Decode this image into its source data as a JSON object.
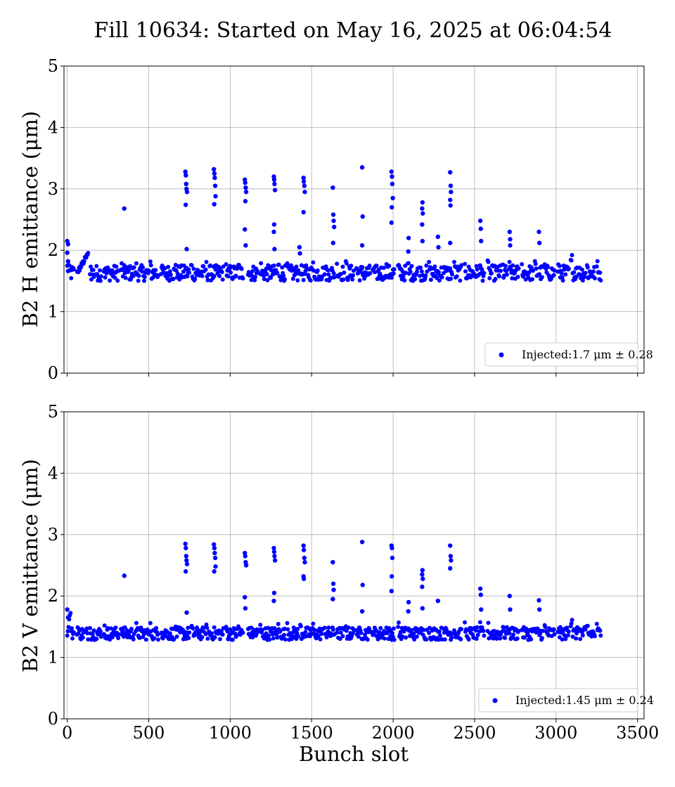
{
  "chart_data": [
    {
      "type": "scatter",
      "title": "Fill 10634: Started on May 16, 2025 at 06:04:54",
      "ylabel": "B2 H emittance (μm)",
      "xlabel": "",
      "xlim": [
        -20,
        3540
      ],
      "ylim": [
        0,
        5
      ],
      "xticks": [
        0,
        500,
        1000,
        1500,
        2000,
        2500,
        3000,
        3500
      ],
      "yticks": [
        0,
        1,
        2,
        3,
        4,
        5
      ],
      "show_xticklabels": false,
      "grid": true,
      "legend_position": "lower right",
      "marker_color": "#0000ff",
      "baseline": {
        "trains": [
          [
            0,
            40
          ],
          [
            60,
            130
          ],
          [
            140,
            210
          ],
          [
            225,
            320
          ],
          [
            330,
            410
          ],
          [
            420,
            500
          ],
          [
            510,
            560
          ],
          [
            575,
            660
          ],
          [
            665,
            750
          ],
          [
            760,
            840
          ],
          [
            850,
            960
          ],
          [
            975,
            1045
          ],
          [
            1050,
            1080
          ],
          [
            1110,
            1170
          ],
          [
            1185,
            1290
          ],
          [
            1295,
            1340
          ],
          [
            1350,
            1420
          ],
          [
            1430,
            1500
          ],
          [
            1505,
            1570
          ],
          [
            1580,
            1640
          ],
          [
            1655,
            1700
          ],
          [
            1710,
            1760
          ],
          [
            1775,
            1860
          ],
          [
            1875,
            1950
          ],
          [
            1955,
            2010
          ],
          [
            2030,
            2080
          ],
          [
            2090,
            2150
          ],
          [
            2160,
            2210
          ],
          [
            2220,
            2300
          ],
          [
            2310,
            2365
          ],
          [
            2375,
            2420
          ],
          [
            2440,
            2520
          ],
          [
            2530,
            2560
          ],
          [
            2580,
            2660
          ],
          [
            2670,
            2700
          ],
          [
            2710,
            2770
          ],
          [
            2790,
            2860
          ],
          [
            2870,
            2920
          ],
          [
            2930,
            2990
          ],
          [
            3010,
            3080
          ],
          [
            3090,
            3130
          ],
          [
            3140,
            3180
          ],
          [
            3190,
            3240
          ],
          [
            3250,
            3275
          ]
        ],
        "center": 1.63,
        "spread": 0.16,
        "rise_ranges": [
          [
            60,
            130,
            1.95
          ],
          [
            3075,
            3100,
            1.95
          ]
        ]
      },
      "outliers": [
        [
          0,
          2.15
        ],
        [
          5,
          2.1
        ],
        [
          0,
          1.96
        ],
        [
          5,
          1.82
        ],
        [
          350,
          2.68
        ],
        [
          725,
          3.28
        ],
        [
          728,
          3.22
        ],
        [
          730,
          3.08
        ],
        [
          732,
          3.0
        ],
        [
          735,
          2.95
        ],
        [
          727,
          2.74
        ],
        [
          733,
          2.02
        ],
        [
          900,
          3.32
        ],
        [
          903,
          3.25
        ],
        [
          905,
          3.18
        ],
        [
          908,
          3.05
        ],
        [
          902,
          2.75
        ],
        [
          910,
          2.88
        ],
        [
          1090,
          3.15
        ],
        [
          1092,
          3.1
        ],
        [
          1095,
          3.02
        ],
        [
          1098,
          2.95
        ],
        [
          1093,
          2.8
        ],
        [
          1090,
          2.34
        ],
        [
          1095,
          2.08
        ],
        [
          1268,
          3.2
        ],
        [
          1270,
          3.15
        ],
        [
          1272,
          3.08
        ],
        [
          1275,
          2.98
        ],
        [
          1270,
          2.42
        ],
        [
          1268,
          2.3
        ],
        [
          1272,
          2.02
        ],
        [
          1425,
          2.05
        ],
        [
          1428,
          1.95
        ],
        [
          1450,
          3.18
        ],
        [
          1452,
          3.12
        ],
        [
          1455,
          3.05
        ],
        [
          1458,
          2.95
        ],
        [
          1450,
          2.62
        ],
        [
          1630,
          3.02
        ],
        [
          1633,
          2.58
        ],
        [
          1635,
          2.48
        ],
        [
          1638,
          2.38
        ],
        [
          1632,
          2.12
        ],
        [
          1810,
          3.35
        ],
        [
          1813,
          2.55
        ],
        [
          1810,
          2.08
        ],
        [
          1990,
          3.28
        ],
        [
          1993,
          3.2
        ],
        [
          1995,
          3.08
        ],
        [
          1998,
          2.85
        ],
        [
          1992,
          2.7
        ],
        [
          1990,
          2.45
        ],
        [
          2095,
          2.2
        ],
        [
          2093,
          1.98
        ],
        [
          2180,
          2.78
        ],
        [
          2178,
          2.68
        ],
        [
          2182,
          2.6
        ],
        [
          2178,
          2.42
        ],
        [
          2180,
          2.15
        ],
        [
          2275,
          2.22
        ],
        [
          2278,
          2.05
        ],
        [
          2350,
          3.27
        ],
        [
          2353,
          3.05
        ],
        [
          2355,
          2.95
        ],
        [
          2350,
          2.82
        ],
        [
          2352,
          2.73
        ],
        [
          2350,
          2.12
        ],
        [
          2535,
          2.48
        ],
        [
          2538,
          2.35
        ],
        [
          2540,
          2.15
        ],
        [
          2715,
          2.3
        ],
        [
          2718,
          2.18
        ],
        [
          2718,
          2.08
        ],
        [
          2895,
          2.3
        ],
        [
          2898,
          2.12
        ]
      ],
      "legend_label": "Injected:1.7 μm ± 0.28"
    },
    {
      "type": "scatter",
      "title": "",
      "ylabel": "B2 V emittance (μm)",
      "xlabel": "Bunch slot",
      "xlim": [
        -20,
        3540
      ],
      "ylim": [
        0,
        5
      ],
      "xticks": [
        0,
        500,
        1000,
        1500,
        2000,
        2500,
        3000,
        3500
      ],
      "yticks": [
        0,
        1,
        2,
        3,
        4,
        5
      ],
      "show_xticklabels": true,
      "grid": true,
      "legend_position": "lower right",
      "marker_color": "#0000ff",
      "baseline": {
        "trains": [
          [
            0,
            40
          ],
          [
            60,
            130
          ],
          [
            140,
            210
          ],
          [
            225,
            320
          ],
          [
            330,
            410
          ],
          [
            420,
            500
          ],
          [
            510,
            560
          ],
          [
            575,
            660
          ],
          [
            665,
            750
          ],
          [
            760,
            840
          ],
          [
            850,
            960
          ],
          [
            975,
            1045
          ],
          [
            1050,
            1080
          ],
          [
            1110,
            1170
          ],
          [
            1185,
            1290
          ],
          [
            1295,
            1340
          ],
          [
            1350,
            1420
          ],
          [
            1430,
            1500
          ],
          [
            1505,
            1570
          ],
          [
            1580,
            1640
          ],
          [
            1655,
            1700
          ],
          [
            1710,
            1760
          ],
          [
            1775,
            1860
          ],
          [
            1875,
            1950
          ],
          [
            1955,
            2010
          ],
          [
            2030,
            2080
          ],
          [
            2090,
            2150
          ],
          [
            2160,
            2210
          ],
          [
            2220,
            2300
          ],
          [
            2310,
            2365
          ],
          [
            2375,
            2420
          ],
          [
            2440,
            2520
          ],
          [
            2530,
            2560
          ],
          [
            2580,
            2660
          ],
          [
            2670,
            2700
          ],
          [
            2710,
            2770
          ],
          [
            2790,
            2860
          ],
          [
            2870,
            2920
          ],
          [
            2930,
            2990
          ],
          [
            3010,
            3080
          ],
          [
            3090,
            3130
          ],
          [
            3140,
            3180
          ],
          [
            3190,
            3240
          ],
          [
            3250,
            3275
          ]
        ],
        "center": 1.39,
        "spread": 0.13,
        "rise_ranges": [
          [
            0,
            20,
            1.75
          ],
          [
            3075,
            3100,
            1.65
          ]
        ]
      },
      "outliers": [
        [
          0,
          1.78
        ],
        [
          5,
          1.65
        ],
        [
          350,
          2.33
        ],
        [
          725,
          2.85
        ],
        [
          728,
          2.78
        ],
        [
          730,
          2.65
        ],
        [
          732,
          2.58
        ],
        [
          735,
          2.52
        ],
        [
          727,
          2.4
        ],
        [
          733,
          1.73
        ],
        [
          900,
          2.84
        ],
        [
          903,
          2.78
        ],
        [
          905,
          2.7
        ],
        [
          908,
          2.62
        ],
        [
          902,
          2.4
        ],
        [
          910,
          2.48
        ],
        [
          1090,
          2.7
        ],
        [
          1092,
          2.65
        ],
        [
          1095,
          2.55
        ],
        [
          1098,
          2.5
        ],
        [
          1090,
          1.98
        ],
        [
          1093,
          1.8
        ],
        [
          1268,
          2.78
        ],
        [
          1270,
          2.72
        ],
        [
          1272,
          2.65
        ],
        [
          1275,
          2.58
        ],
        [
          1270,
          2.05
        ],
        [
          1268,
          1.92
        ],
        [
          1450,
          2.82
        ],
        [
          1452,
          2.75
        ],
        [
          1455,
          2.62
        ],
        [
          1458,
          2.55
        ],
        [
          1450,
          2.32
        ],
        [
          1452,
          2.28
        ],
        [
          1630,
          2.55
        ],
        [
          1633,
          2.2
        ],
        [
          1635,
          2.1
        ],
        [
          1630,
          1.95
        ],
        [
          1810,
          2.88
        ],
        [
          1813,
          2.18
        ],
        [
          1810,
          1.75
        ],
        [
          1990,
          2.82
        ],
        [
          1993,
          2.78
        ],
        [
          1995,
          2.62
        ],
        [
          1992,
          2.32
        ],
        [
          1990,
          2.08
        ],
        [
          2095,
          1.9
        ],
        [
          2093,
          1.75
        ],
        [
          2180,
          2.42
        ],
        [
          2178,
          2.35
        ],
        [
          2182,
          2.28
        ],
        [
          2178,
          2.15
        ],
        [
          2180,
          1.8
        ],
        [
          2275,
          1.92
        ],
        [
          2350,
          2.82
        ],
        [
          2353,
          2.65
        ],
        [
          2355,
          2.58
        ],
        [
          2350,
          2.45
        ],
        [
          2535,
          2.12
        ],
        [
          2538,
          2.02
        ],
        [
          2540,
          1.78
        ],
        [
          2715,
          2.0
        ],
        [
          2718,
          1.78
        ],
        [
          2895,
          1.93
        ],
        [
          2898,
          1.78
        ]
      ],
      "legend_label": "Injected:1.45 μm ± 0.24"
    }
  ]
}
